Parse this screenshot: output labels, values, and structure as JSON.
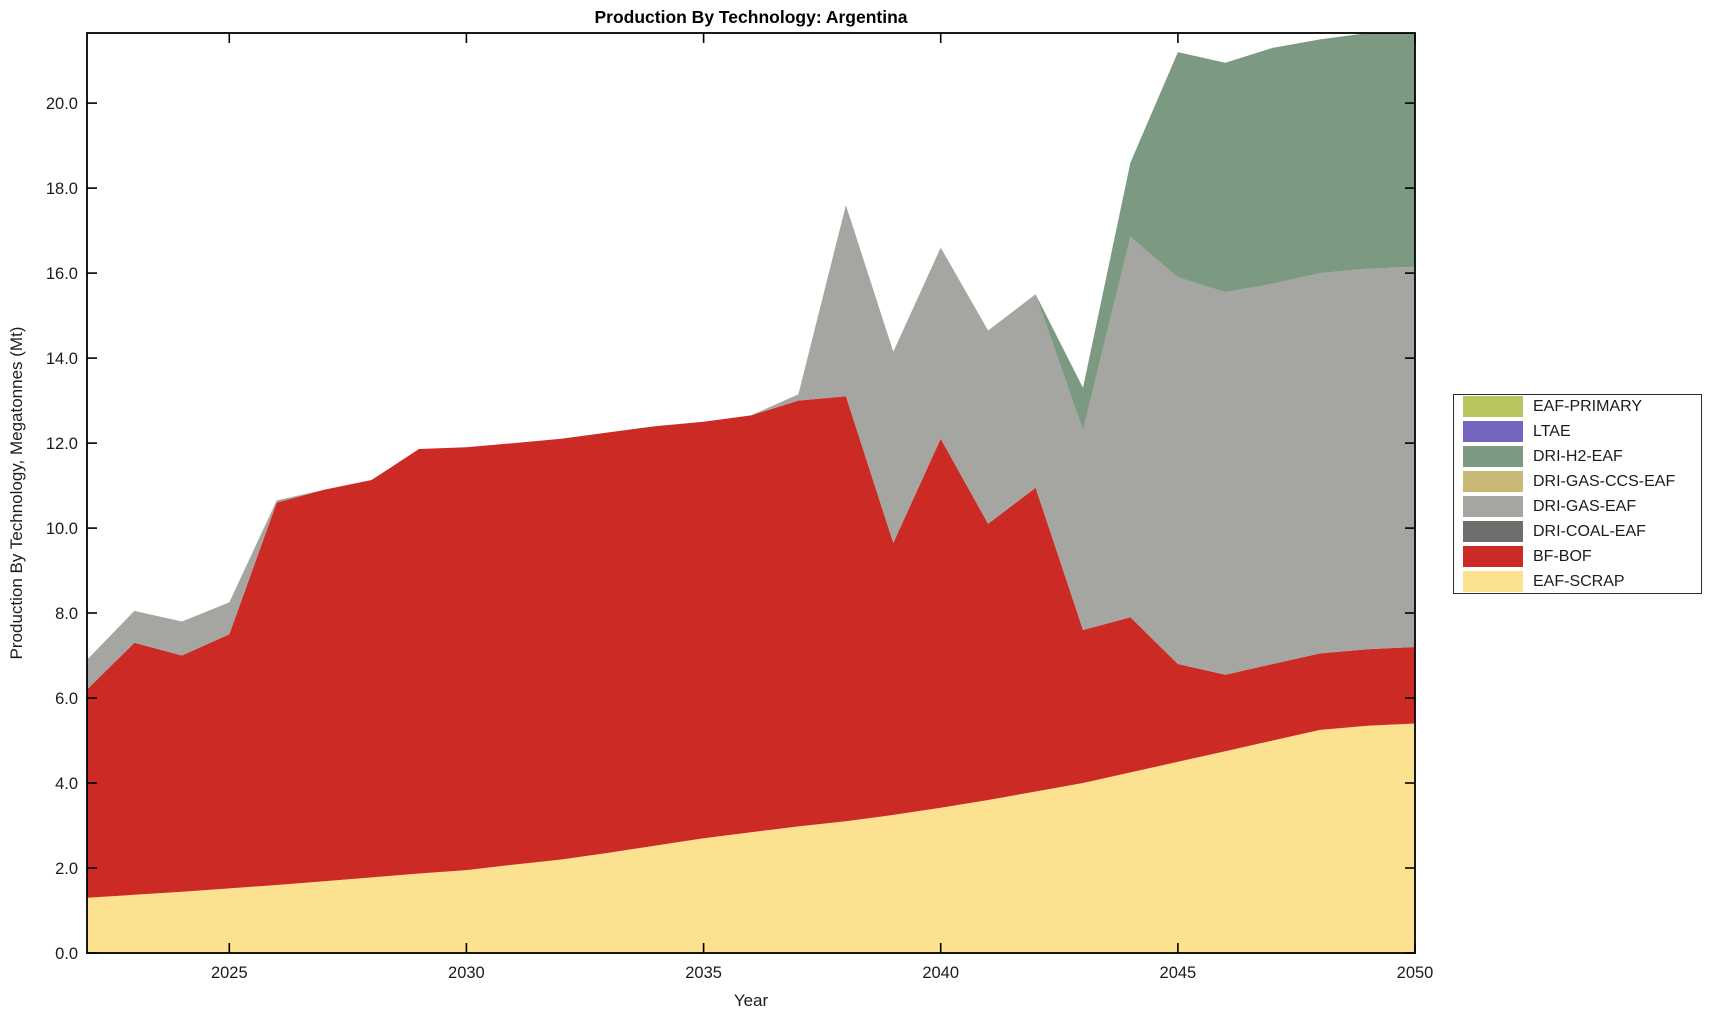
{
  "title": "Production By Technology: Argentina",
  "xlabel": "Year",
  "ylabel": "Production By Technology, Megatonnes (Mt)",
  "legend": {
    "items": [
      {
        "label": "EAF-PRIMARY",
        "color": "#b9c55f"
      },
      {
        "label": "LTAE",
        "color": "#7366bc"
      },
      {
        "label": "DRI-H2-EAF",
        "color": "#7c9a81"
      },
      {
        "label": "DRI-GAS-CCS-EAF",
        "color": "#c8ba74"
      },
      {
        "label": "DRI-GAS-EAF",
        "color": "#a5a5a1"
      },
      {
        "label": "DRI-COAL-EAF",
        "color": "#6e6e6c"
      },
      {
        "label": "BF-BOF",
        "color": "#cc2a25"
      },
      {
        "label": "EAF-SCRAP",
        "color": "#fce190"
      }
    ]
  },
  "axes": {
    "xtick_labels": [
      "2025",
      "2030",
      "2035",
      "2040",
      "2045",
      "2050"
    ],
    "ytick_labels": [
      "0.0",
      "2.0",
      "4.0",
      "6.0",
      "8.0",
      "10.0",
      "12.0",
      "14.0",
      "16.0",
      "18.0",
      "20.0"
    ]
  },
  "chart_data": {
    "type": "area",
    "stacked": true,
    "title": "Production By Technology: Argentina",
    "xlabel": "Year",
    "ylabel": "Production By Technology, Megatonnes (Mt)",
    "grid": false,
    "legend_position": "right-outside",
    "xlim": [
      2022,
      2050
    ],
    "ylim": [
      0,
      21.65
    ],
    "xticks": [
      2025,
      2030,
      2035,
      2040,
      2045,
      2050
    ],
    "yticks": [
      0,
      2,
      4,
      6,
      8,
      10,
      12,
      14,
      16,
      18,
      20
    ],
    "x": [
      2022,
      2023,
      2024,
      2025,
      2026,
      2027,
      2028,
      2029,
      2030,
      2031,
      2032,
      2033,
      2034,
      2035,
      2036,
      2037,
      2038,
      2039,
      2040,
      2041,
      2042,
      2043,
      2044,
      2045,
      2046,
      2047,
      2048,
      2049,
      2050
    ],
    "series": [
      {
        "name": "EAF-SCRAP",
        "color": "#fce190",
        "values": [
          1.3,
          1.37,
          1.44,
          1.52,
          1.6,
          1.69,
          1.78,
          1.87,
          1.95,
          2.08,
          2.2,
          2.36,
          2.53,
          2.7,
          2.84,
          2.98,
          3.1,
          3.25,
          3.42,
          3.6,
          3.8,
          4.0,
          4.25,
          4.5,
          4.75,
          5.0,
          5.25,
          5.35,
          5.4
        ]
      },
      {
        "name": "BF-BOF",
        "color": "#cc2a25",
        "values": [
          4.9,
          5.93,
          5.56,
          5.98,
          9.0,
          9.21,
          9.35,
          9.99,
          9.95,
          9.92,
          9.9,
          9.89,
          9.87,
          9.8,
          9.81,
          10.02,
          10.0,
          6.4,
          8.68,
          6.5,
          7.15,
          3.6,
          3.65,
          2.3,
          1.8,
          1.8,
          1.8,
          1.8,
          1.8
        ]
      },
      {
        "name": "DRI-COAL-EAF",
        "color": "#6e6e6c",
        "values": [
          0,
          0,
          0,
          0,
          0,
          0,
          0,
          0,
          0,
          0,
          0,
          0,
          0,
          0,
          0,
          0,
          0,
          0,
          0,
          0,
          0,
          0,
          0,
          0,
          0,
          0,
          0,
          0,
          0
        ]
      },
      {
        "name": "DRI-GAS-EAF",
        "color": "#a5a5a1",
        "values": [
          0.7,
          0.75,
          0.8,
          0.75,
          0.05,
          0,
          0,
          0,
          0,
          0,
          0,
          0,
          0,
          0,
          0,
          0.15,
          4.5,
          4.5,
          4.5,
          4.55,
          4.55,
          4.7,
          8.95,
          9.1,
          9.0,
          8.95,
          8.95,
          8.95,
          8.95
        ]
      },
      {
        "name": "DRI-GAS-CCS-EAF",
        "color": "#c8ba74",
        "values": [
          0,
          0,
          0,
          0,
          0,
          0,
          0,
          0,
          0,
          0,
          0,
          0,
          0,
          0,
          0,
          0,
          0,
          0,
          0,
          0,
          0,
          0,
          0,
          0,
          0,
          0,
          0,
          0,
          0
        ]
      },
      {
        "name": "DRI-H2-EAF",
        "color": "#7c9a81",
        "values": [
          0,
          0,
          0,
          0,
          0,
          0,
          0,
          0,
          0,
          0,
          0,
          0,
          0,
          0,
          0,
          0,
          0,
          0,
          0,
          0,
          0,
          1.0,
          1.75,
          5.3,
          5.4,
          5.55,
          5.5,
          5.55,
          5.5
        ]
      },
      {
        "name": "LTAE",
        "color": "#7366bc",
        "values": [
          0,
          0,
          0,
          0,
          0,
          0,
          0,
          0,
          0,
          0,
          0,
          0,
          0,
          0,
          0,
          0,
          0,
          0,
          0,
          0,
          0,
          0,
          0,
          0,
          0,
          0,
          0,
          0,
          0
        ]
      },
      {
        "name": "EAF-PRIMARY",
        "color": "#b9c55f",
        "values": [
          0,
          0,
          0,
          0,
          0,
          0,
          0,
          0,
          0,
          0,
          0,
          0,
          0,
          0,
          0,
          0,
          0,
          0,
          0,
          0,
          0,
          0,
          0,
          0,
          0,
          0,
          0,
          0,
          0
        ]
      }
    ]
  }
}
